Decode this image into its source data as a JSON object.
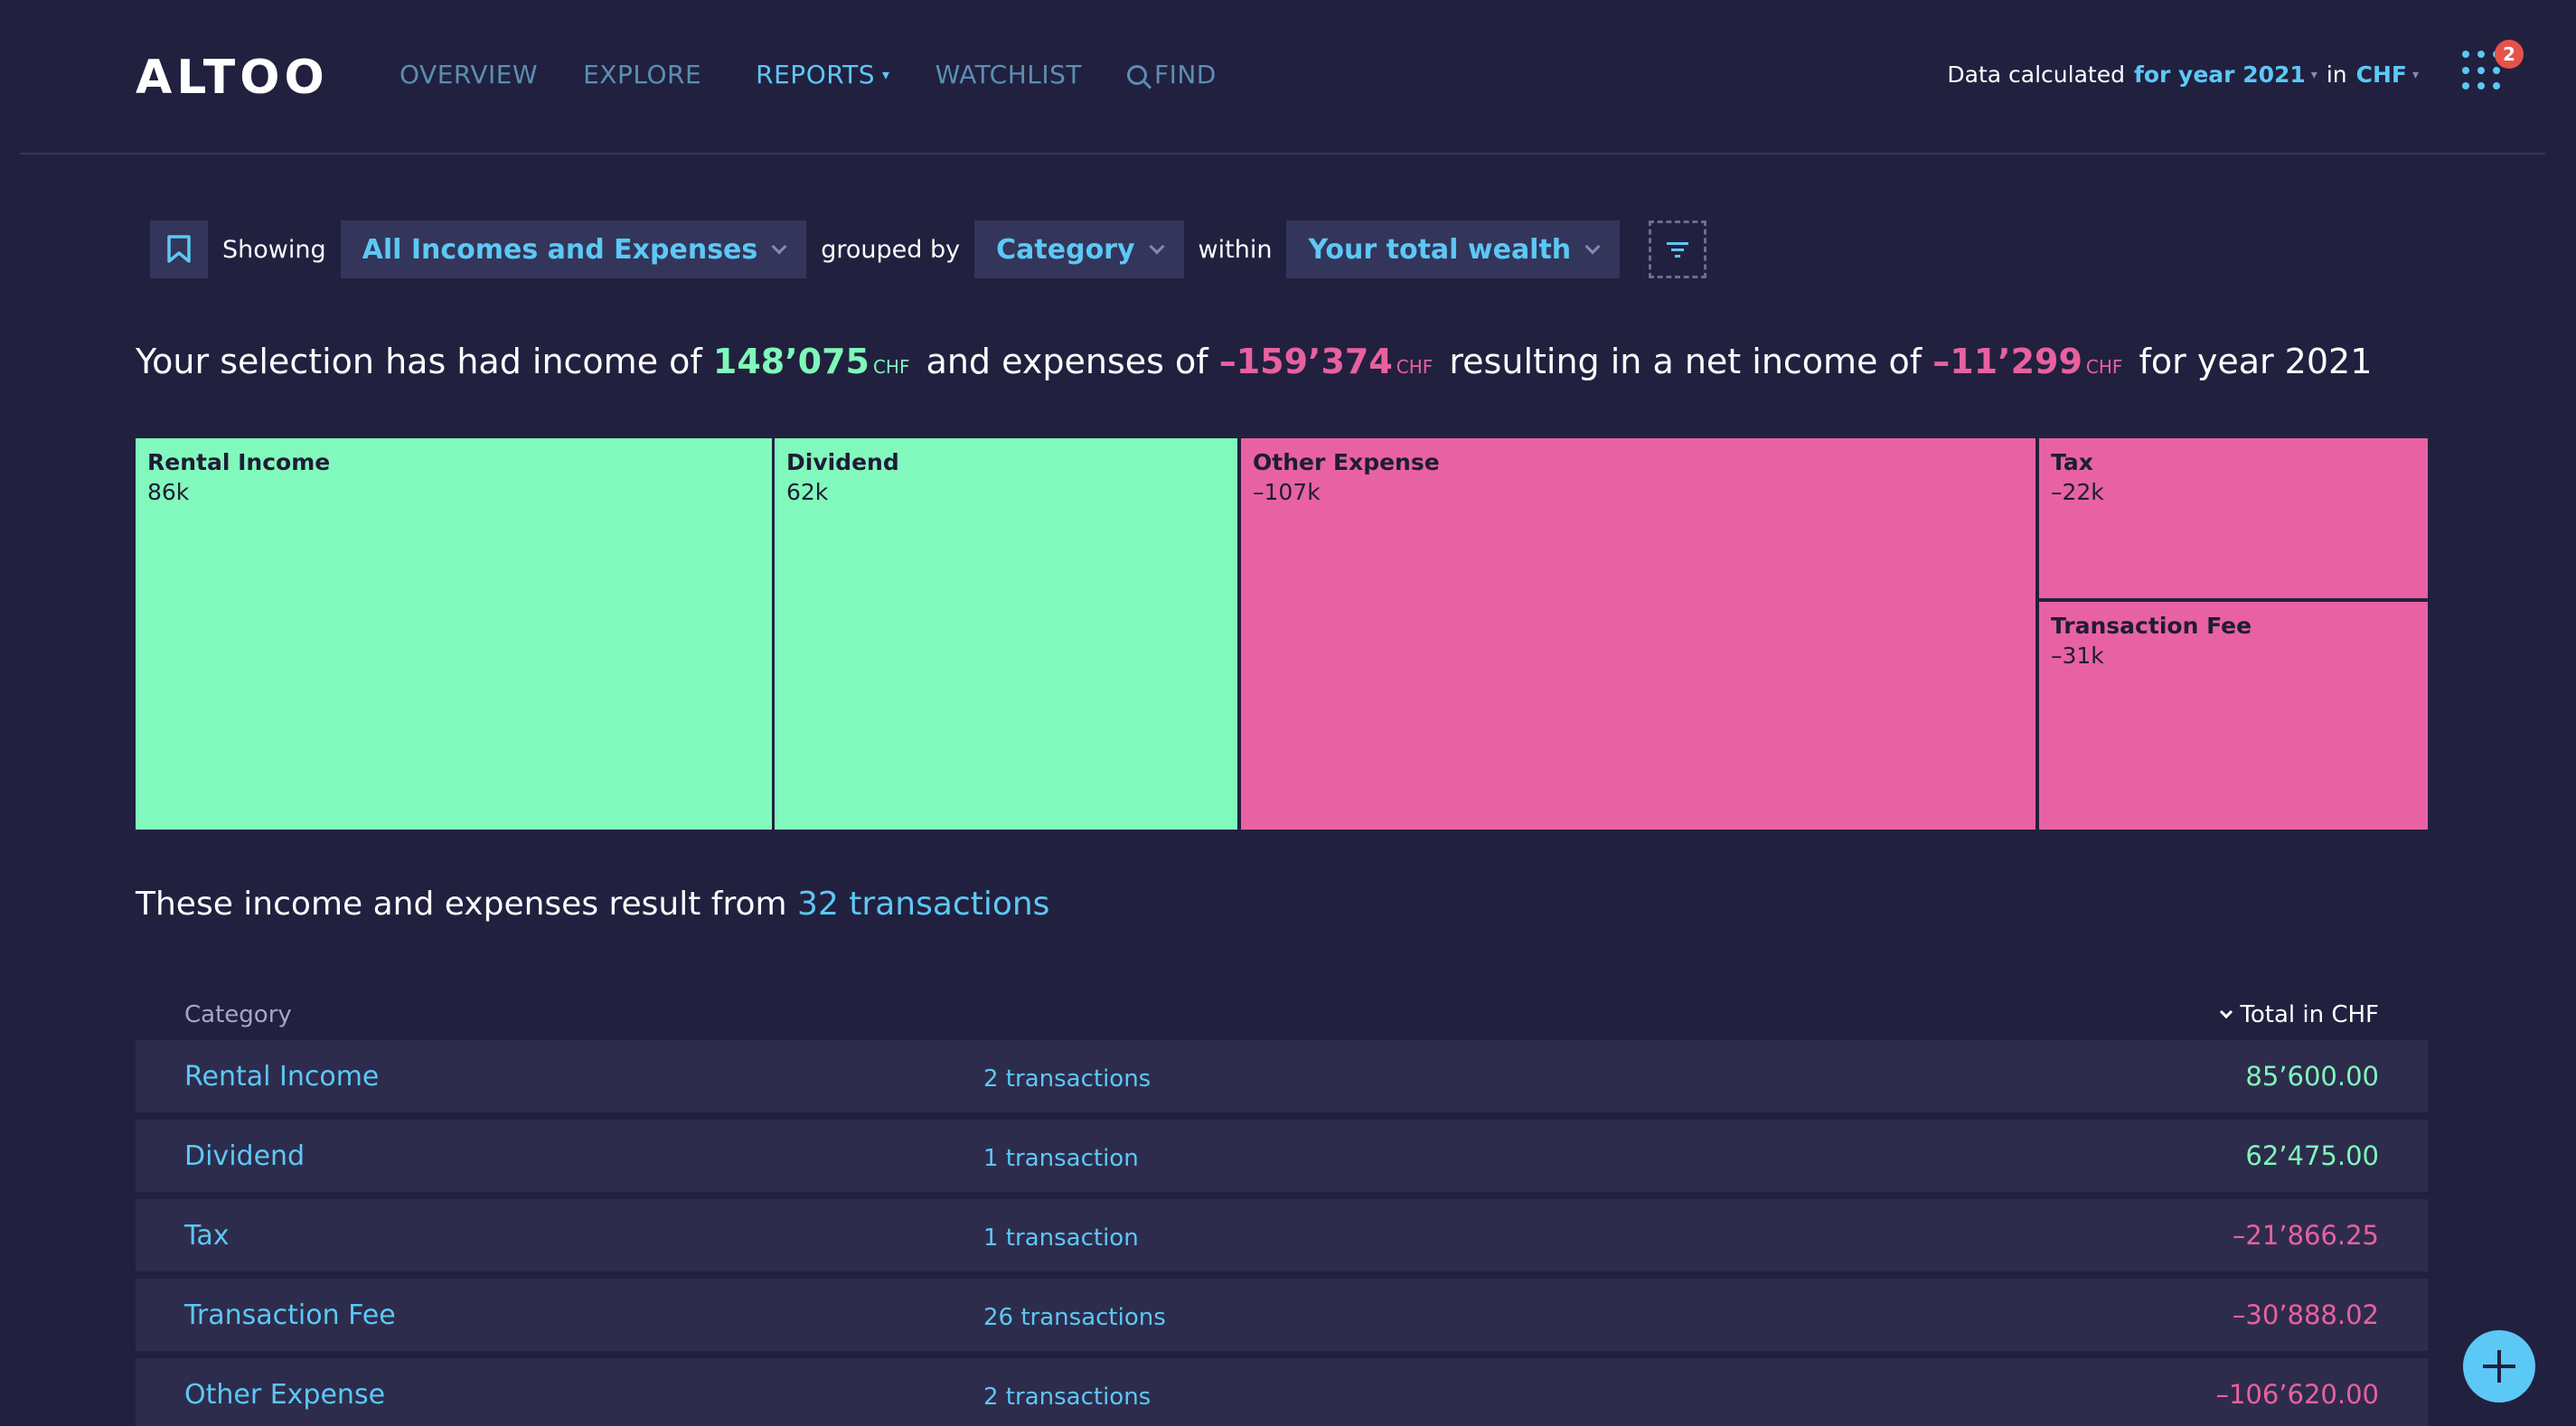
{
  "header": {
    "logo": "ALTOO",
    "nav": [
      {
        "label": "OVERVIEW"
      },
      {
        "label": "EXPLORE"
      },
      {
        "label": "REPORTS"
      },
      {
        "label": "WATCHLIST"
      },
      {
        "label": "FIND"
      }
    ],
    "calc_prefix": "Data calculated",
    "calc_period": "for year 2021",
    "calc_in": "in",
    "calc_currency": "CHF",
    "notifications_count": "2"
  },
  "filterbar": {
    "showing_label": "Showing",
    "showing_value": "All Incomes and Expenses",
    "grouped_label": "grouped by",
    "grouped_value": "Category",
    "within_label": "within",
    "within_value": "Your total wealth"
  },
  "summary": {
    "part1": "Your selection has had income of",
    "income": "148’075",
    "currency": "CHF",
    "part2": "and expenses of",
    "expenses": "–159’374",
    "part3": "resulting in a net income of",
    "net": "–11’299",
    "part4": "for year 2021"
  },
  "treemap": [
    {
      "label": "Rental Income",
      "value": "86k",
      "kind": "income"
    },
    {
      "label": "Dividend",
      "value": "62k",
      "kind": "income"
    },
    {
      "label": "Other Expense",
      "value": "–107k",
      "kind": "expense"
    },
    {
      "label": "Tax",
      "value": "–22k",
      "kind": "expense"
    },
    {
      "label": "Transaction Fee",
      "value": "–31k",
      "kind": "expense"
    }
  ],
  "transactions": {
    "sentence": "These income and expenses result from",
    "link": "32 transactions"
  },
  "table": {
    "col_category": "Category",
    "col_total": "Total in CHF",
    "rows": [
      {
        "category": "Rental Income",
        "count": "2 transactions",
        "total": "85’600.00",
        "sign": "pos"
      },
      {
        "category": "Dividend",
        "count": "1 transaction",
        "total": "62’475.00",
        "sign": "pos"
      },
      {
        "category": "Tax",
        "count": "1 transaction",
        "total": "–21’866.25",
        "sign": "neg"
      },
      {
        "category": "Transaction Fee",
        "count": "26 transactions",
        "total": "–30’888.02",
        "sign": "neg"
      },
      {
        "category": "Other Expense",
        "count": "2 transactions",
        "total": "–106’620.00",
        "sign": "neg"
      }
    ]
  },
  "colors": {
    "background": "#22203f",
    "accent": "#5cc8f5",
    "income": "#81f9bc",
    "expense": "#e862a3",
    "badge": "#e6524a"
  }
}
